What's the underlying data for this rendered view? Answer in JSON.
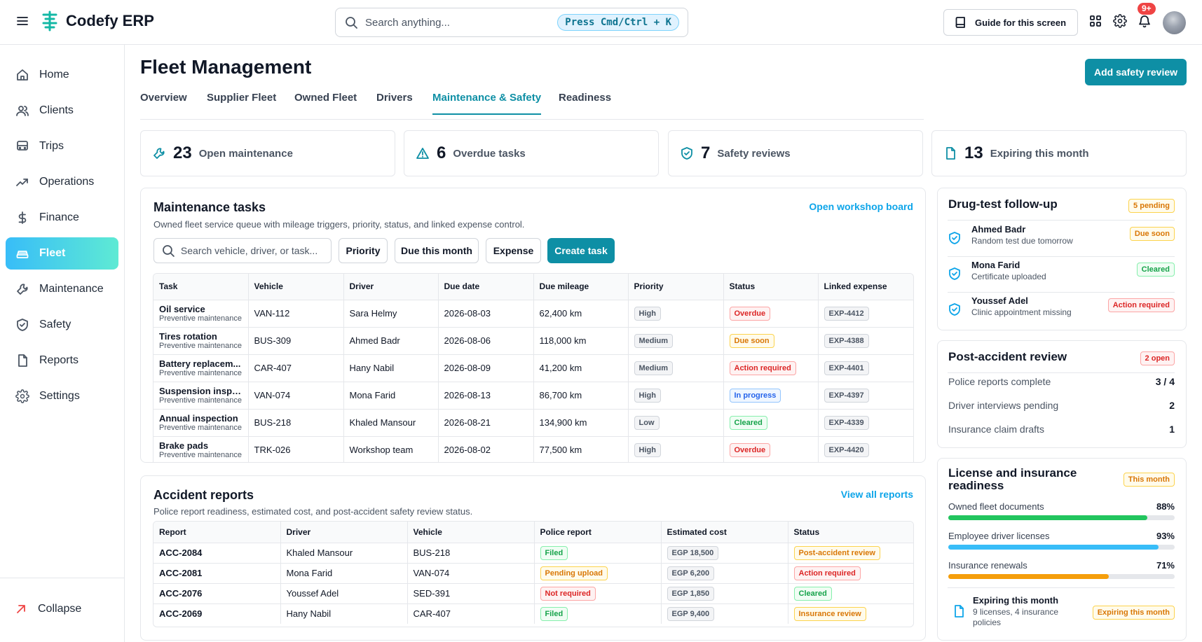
{
  "app": {
    "name": "Codefy ERP",
    "search_placeholder": "Search anything...",
    "shortcut": "Press Cmd/Ctrl + K",
    "guide_label": "Guide for this screen",
    "notification_count": "9+"
  },
  "sidebar": {
    "items": [
      {
        "label": "Home",
        "icon": "home-icon"
      },
      {
        "label": "Clients",
        "icon": "users-icon"
      },
      {
        "label": "Trips",
        "icon": "bus-icon"
      },
      {
        "label": "Operations",
        "icon": "trending-up-icon"
      },
      {
        "label": "Finance",
        "icon": "dollar-icon"
      },
      {
        "label": "Fleet",
        "icon": "car-icon",
        "active": true
      },
      {
        "label": "Maintenance",
        "icon": "wrench-icon"
      },
      {
        "label": "Safety",
        "icon": "shield-icon"
      },
      {
        "label": "Reports",
        "icon": "file-icon"
      },
      {
        "label": "Settings",
        "icon": "gear-icon"
      }
    ],
    "collapse_label": "Collapse"
  },
  "page": {
    "title": "Fleet Management",
    "add_button": "Add safety review",
    "tabs": [
      "Overview",
      "Supplier Fleet",
      "Owned Fleet",
      "Drivers",
      "Maintenance & Safety",
      "Readiness"
    ],
    "active_tab": "Maintenance & Safety"
  },
  "stats": [
    {
      "value": "23",
      "label": "Open maintenance",
      "icon": "wrench-icon"
    },
    {
      "value": "6",
      "label": "Overdue tasks",
      "icon": "alert-triangle-icon"
    },
    {
      "value": "7",
      "label": "Safety reviews",
      "icon": "shield-check-icon"
    },
    {
      "value": "13",
      "label": "Expiring this month",
      "icon": "document-icon"
    }
  ],
  "maintenance": {
    "title": "Maintenance tasks",
    "subtitle": "Owned fleet service queue with mileage triggers, priority, status, and linked expense control.",
    "link": "Open workshop board",
    "search_placeholder": "Search vehicle, driver, or task...",
    "filters": [
      "Priority",
      "Due this month",
      "Expense"
    ],
    "create_label": "Create task",
    "columns": [
      "Task",
      "Vehicle",
      "Driver",
      "Due date",
      "Due mileage",
      "Priority",
      "Status",
      "Linked expense"
    ],
    "rows": [
      {
        "task": "Oil service",
        "type": "Preventive maintenance",
        "vehicle": "VAN-112",
        "driver": "Sara Helmy",
        "due": "2026-08-03",
        "mileage": "62,400 km",
        "priority": "High",
        "status": "Overdue",
        "status_color": "red",
        "expense": "EXP-4412"
      },
      {
        "task": "Tires rotation",
        "type": "Preventive maintenance",
        "vehicle": "BUS-309",
        "driver": "Ahmed Badr",
        "due": "2026-08-06",
        "mileage": "118,000 km",
        "priority": "Medium",
        "status": "Due soon",
        "status_color": "amber",
        "expense": "EXP-4388"
      },
      {
        "task": "Battery replacem...",
        "type": "Preventive maintenance",
        "vehicle": "CAR-407",
        "driver": "Hany Nabil",
        "due": "2026-08-09",
        "mileage": "41,200 km",
        "priority": "Medium",
        "status": "Action required",
        "status_color": "red",
        "expense": "EXP-4401"
      },
      {
        "task": "Suspension inspe...",
        "type": "Preventive maintenance",
        "vehicle": "VAN-074",
        "driver": "Mona Farid",
        "due": "2026-08-13",
        "mileage": "86,700 km",
        "priority": "High",
        "status": "In progress",
        "status_color": "blue",
        "expense": "EXP-4397"
      },
      {
        "task": "Annual inspection",
        "type": "Preventive maintenance",
        "vehicle": "BUS-218",
        "driver": "Khaled Mansour",
        "due": "2026-08-21",
        "mileage": "134,900 km",
        "priority": "Low",
        "status": "Cleared",
        "status_color": "green",
        "expense": "EXP-4339"
      },
      {
        "task": "Brake pads",
        "type": "Preventive maintenance",
        "vehicle": "TRK-026",
        "driver": "Workshop team",
        "due": "2026-08-02",
        "mileage": "77,500 km",
        "priority": "High",
        "status": "Overdue",
        "status_color": "red",
        "expense": "EXP-4420"
      }
    ]
  },
  "accidents": {
    "title": "Accident reports",
    "subtitle": "Police report readiness, estimated cost, and post-accident safety review status.",
    "link": "View all reports",
    "columns": [
      "Report",
      "Driver",
      "Vehicle",
      "Police report",
      "Estimated cost",
      "Status"
    ],
    "rows": [
      {
        "report": "ACC-2084",
        "driver": "Khaled Mansour",
        "vehicle": "BUS-218",
        "police": "Filed",
        "police_color": "green",
        "cost": "EGP 18,500",
        "status": "Post-accident review",
        "status_color": "amber"
      },
      {
        "report": "ACC-2081",
        "driver": "Mona Farid",
        "vehicle": "VAN-074",
        "police": "Pending upload",
        "police_color": "amber",
        "cost": "EGP 6,200",
        "status": "Action required",
        "status_color": "red"
      },
      {
        "report": "ACC-2076",
        "driver": "Youssef Adel",
        "vehicle": "SED-391",
        "police": "Not required",
        "police_color": "red",
        "cost": "EGP 1,850",
        "status": "Cleared",
        "status_color": "green"
      },
      {
        "report": "ACC-2069",
        "driver": "Hany Nabil",
        "vehicle": "CAR-407",
        "police": "Filed",
        "police_color": "green",
        "cost": "EGP 9,400",
        "status": "Insurance review",
        "status_color": "amber"
      }
    ]
  },
  "drug_test": {
    "title": "Drug-test follow-up",
    "badge": "5 pending",
    "items": [
      {
        "name": "Ahmed Badr",
        "note": "Random test due tomorrow",
        "status": "Due soon",
        "color": "amber"
      },
      {
        "name": "Mona Farid",
        "note": "Certificate uploaded",
        "status": "Cleared",
        "color": "green"
      },
      {
        "name": "Youssef Adel",
        "note": "Clinic appointment missing",
        "status": "Action required",
        "color": "red"
      }
    ]
  },
  "post_accident": {
    "title": "Post-accident review",
    "badge": "2 open",
    "rows": [
      {
        "label": "Police reports complete",
        "value": "3 / 4"
      },
      {
        "label": "Driver interviews pending",
        "value": "2"
      },
      {
        "label": "Insurance claim drafts",
        "value": "1"
      }
    ]
  },
  "readiness": {
    "title_line1": "License and insurance",
    "title_line2": "readiness",
    "badge": "This month",
    "rows": [
      {
        "label": "Owned fleet documents",
        "value": "88%",
        "pct": 88,
        "color": "#22c55e"
      },
      {
        "label": "Employee driver licenses",
        "value": "93%",
        "pct": 93,
        "color": "#38bdf8"
      },
      {
        "label": "Insurance renewals",
        "value": "71%",
        "pct": 71,
        "color": "#f59e0b"
      }
    ],
    "footer_title": "Expiring this month",
    "footer_line1": "9 licenses, 4 insurance",
    "footer_line2": "policies",
    "footer_badge": "Expiring this month"
  }
}
